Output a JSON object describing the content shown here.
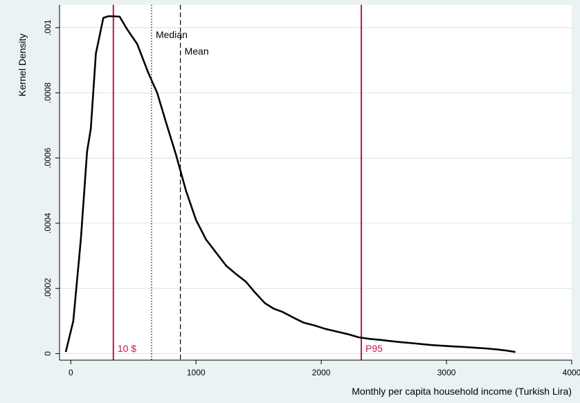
{
  "chart_data": {
    "type": "line",
    "title": "",
    "xlabel": "Monthly per capita household income (Turkish Lira)",
    "ylabel": "Kernel Density",
    "xlim": [
      -90,
      4000
    ],
    "ylim": [
      -2e-05,
      0.00107
    ],
    "xticks": [
      0,
      1000,
      2000,
      3000,
      4000
    ],
    "xtick_labels": [
      "0",
      "1000",
      "2000",
      "3000",
      "4000"
    ],
    "yticks": [
      0,
      0.0002,
      0.0004,
      0.0006,
      0.0008,
      0.001
    ],
    "ytick_labels": [
      "0",
      ".0002",
      ".0004",
      ".0006",
      ".0008",
      ".001"
    ],
    "grid": "horizontal",
    "legend": "none",
    "colors": {
      "background": "#eaf2f3",
      "plot_background": "#ffffff",
      "grid": "#dde6ea",
      "density_line": "#000000",
      "marker_line": "#b5174b",
      "marker_text": "#c41a4e",
      "axis": "#000000"
    },
    "series": [
      {
        "x": [
          -40,
          20,
          80,
          130,
          160,
          200,
          260,
          300,
          330,
          390,
          450,
          530,
          620,
          690,
          760,
          840,
          920,
          1000,
          1080,
          1160,
          1240,
          1320,
          1400,
          1470,
          1550,
          1620,
          1690,
          1780,
          1860,
          1950,
          2030,
          2120,
          2210,
          2300,
          2390,
          2480,
          2560,
          2640,
          2730,
          2810,
          2890,
          2980,
          3060,
          3150,
          3230,
          3310,
          3400,
          3470,
          3550
        ],
        "y": [
          5e-06,
          0.0001,
          0.00035,
          0.00062,
          0.00069,
          0.00092,
          0.00103,
          0.001035,
          0.001035,
          0.001034,
          0.000995,
          0.00095,
          0.00086,
          0.0008,
          0.00071,
          0.00061,
          0.0005,
          0.00041,
          0.00035,
          0.00031,
          0.00027,
          0.000244,
          0.00022,
          0.000188,
          0.000155,
          0.000138,
          0.000128,
          0.00011,
          9.5e-05,
          8.6e-05,
          7.6e-05,
          6.8e-05,
          6e-05,
          5e-05,
          4.5e-05,
          4.2e-05,
          3.8e-05,
          3.5e-05,
          3.2e-05,
          2.9e-05,
          2.6e-05,
          2.4e-05,
          2.2e-05,
          2e-05,
          1.8e-05,
          1.6e-05,
          1.3e-05,
          1e-05,
          5e-06
        ]
      }
    ],
    "vlines": [
      {
        "x": 340,
        "label": "10 $",
        "style": "solid",
        "color_key": "marker_line",
        "label_pos": "bottom"
      },
      {
        "x": 645,
        "label": "Median",
        "style": "dotted",
        "color_key": "density_line",
        "label_pos": "top"
      },
      {
        "x": 875,
        "label": "Mean",
        "style": "dashed",
        "color_key": "density_line",
        "label_pos": "top2"
      },
      {
        "x": 2320,
        "label": "P95",
        "style": "solid",
        "color_key": "marker_line",
        "label_pos": "bottom"
      }
    ]
  }
}
